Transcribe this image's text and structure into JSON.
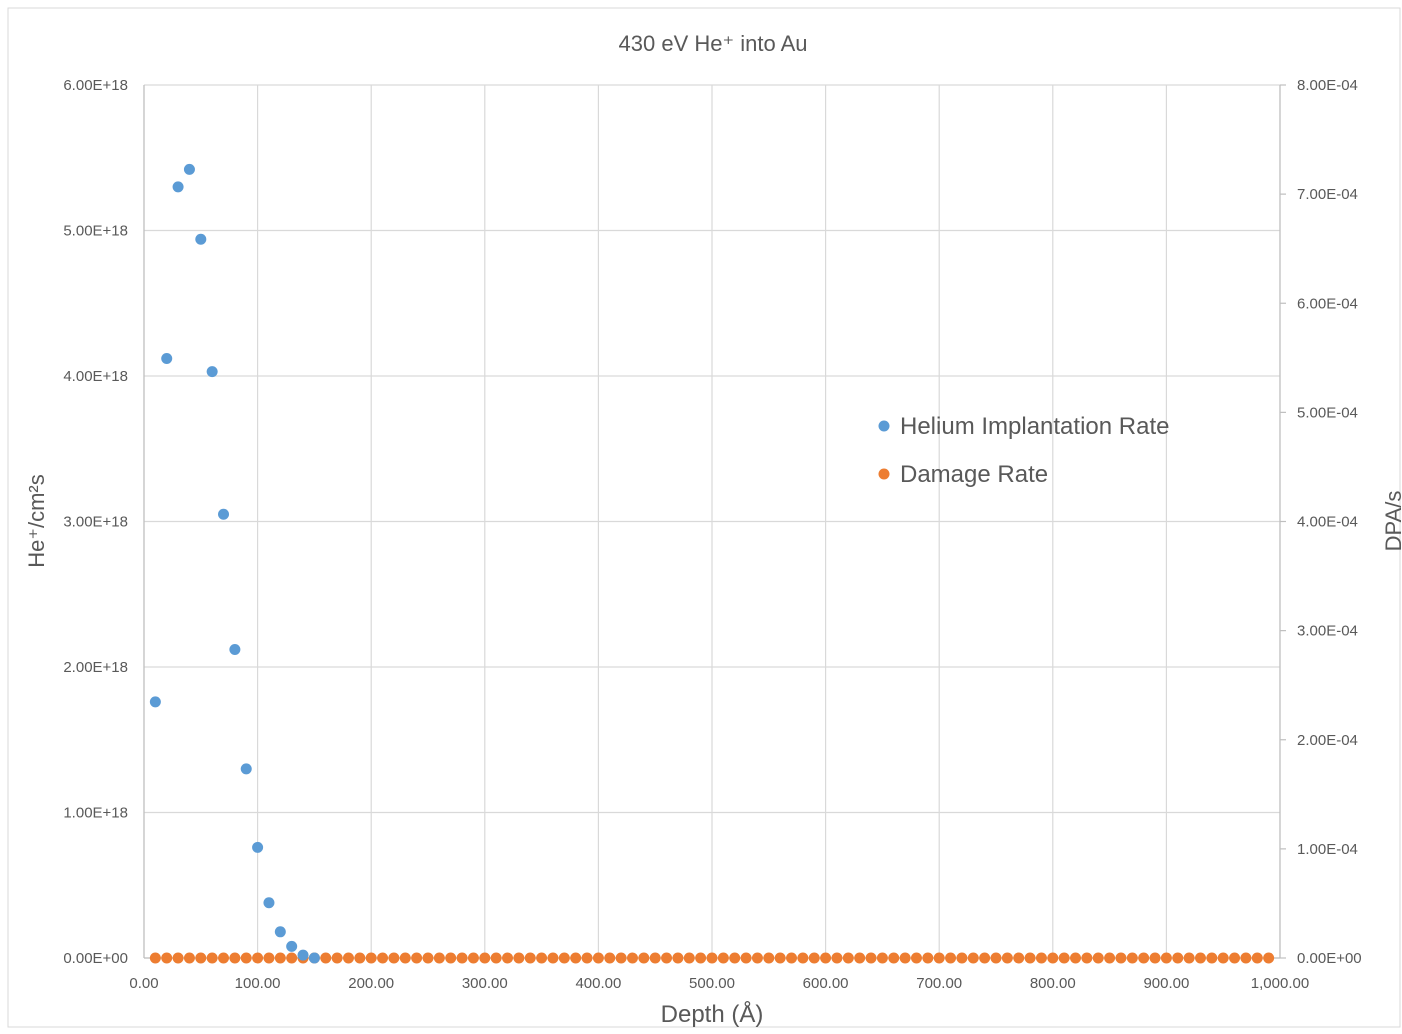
{
  "chart_data": {
    "type": "scatter",
    "title": "430 eV He⁺ into Au",
    "xlabel": "Depth (Å)",
    "ylabel": "He⁺/cm²s",
    "y2label": "DPA/s",
    "xlim": [
      0,
      1000
    ],
    "ylim": [
      0,
      6e+18
    ],
    "y2lim": [
      0,
      0.0008
    ],
    "x_ticks": [
      0,
      100,
      200,
      300,
      400,
      500,
      600,
      700,
      800,
      900,
      1000
    ],
    "x_tick_labels": [
      "0.00",
      "100.00",
      "200.00",
      "300.00",
      "400.00",
      "500.00",
      "600.00",
      "700.00",
      "800.00",
      "900.00",
      "1,000.00"
    ],
    "y_ticks": [
      0,
      1e+18,
      2e+18,
      3e+18,
      4e+18,
      5e+18,
      6e+18
    ],
    "y_tick_labels": [
      "0.00E+00",
      "1.00E+18",
      "2.00E+18",
      "3.00E+18",
      "4.00E+18",
      "5.00E+18",
      "6.00E+18"
    ],
    "y2_ticks": [
      0,
      0.0001,
      0.0002,
      0.0003,
      0.0004,
      0.0005,
      0.0006,
      0.0007,
      0.0008
    ],
    "y2_tick_labels": [
      "0.00E+00",
      "1.00E-04",
      "2.00E-04",
      "3.00E-04",
      "4.00E-04",
      "5.00E-04",
      "6.00E-04",
      "7.00E-04",
      "8.00E-04"
    ],
    "grid": true,
    "legend_position": "center-right",
    "series": [
      {
        "name": "Helium Implantation Rate",
        "axis": "left",
        "color": "#5B9BD5",
        "x": [
          10,
          20,
          30,
          40,
          50,
          60,
          70,
          80,
          90,
          100,
          110,
          120,
          130,
          140,
          150
        ],
        "y": [
          1.76e+18,
          4.12e+18,
          5.3e+18,
          5.42e+18,
          4.94e+18,
          4.03e+18,
          3.05e+18,
          2.12e+18,
          1.3e+18,
          7.6e+17,
          3.8e+17,
          1.8e+17,
          8e+16,
          2e+16,
          0
        ]
      },
      {
        "name": "Damage Rate",
        "axis": "right",
        "color": "#ED7D31",
        "x_start": 10,
        "x_end": 990,
        "x_step": 10,
        "y_value": 0
      }
    ]
  }
}
